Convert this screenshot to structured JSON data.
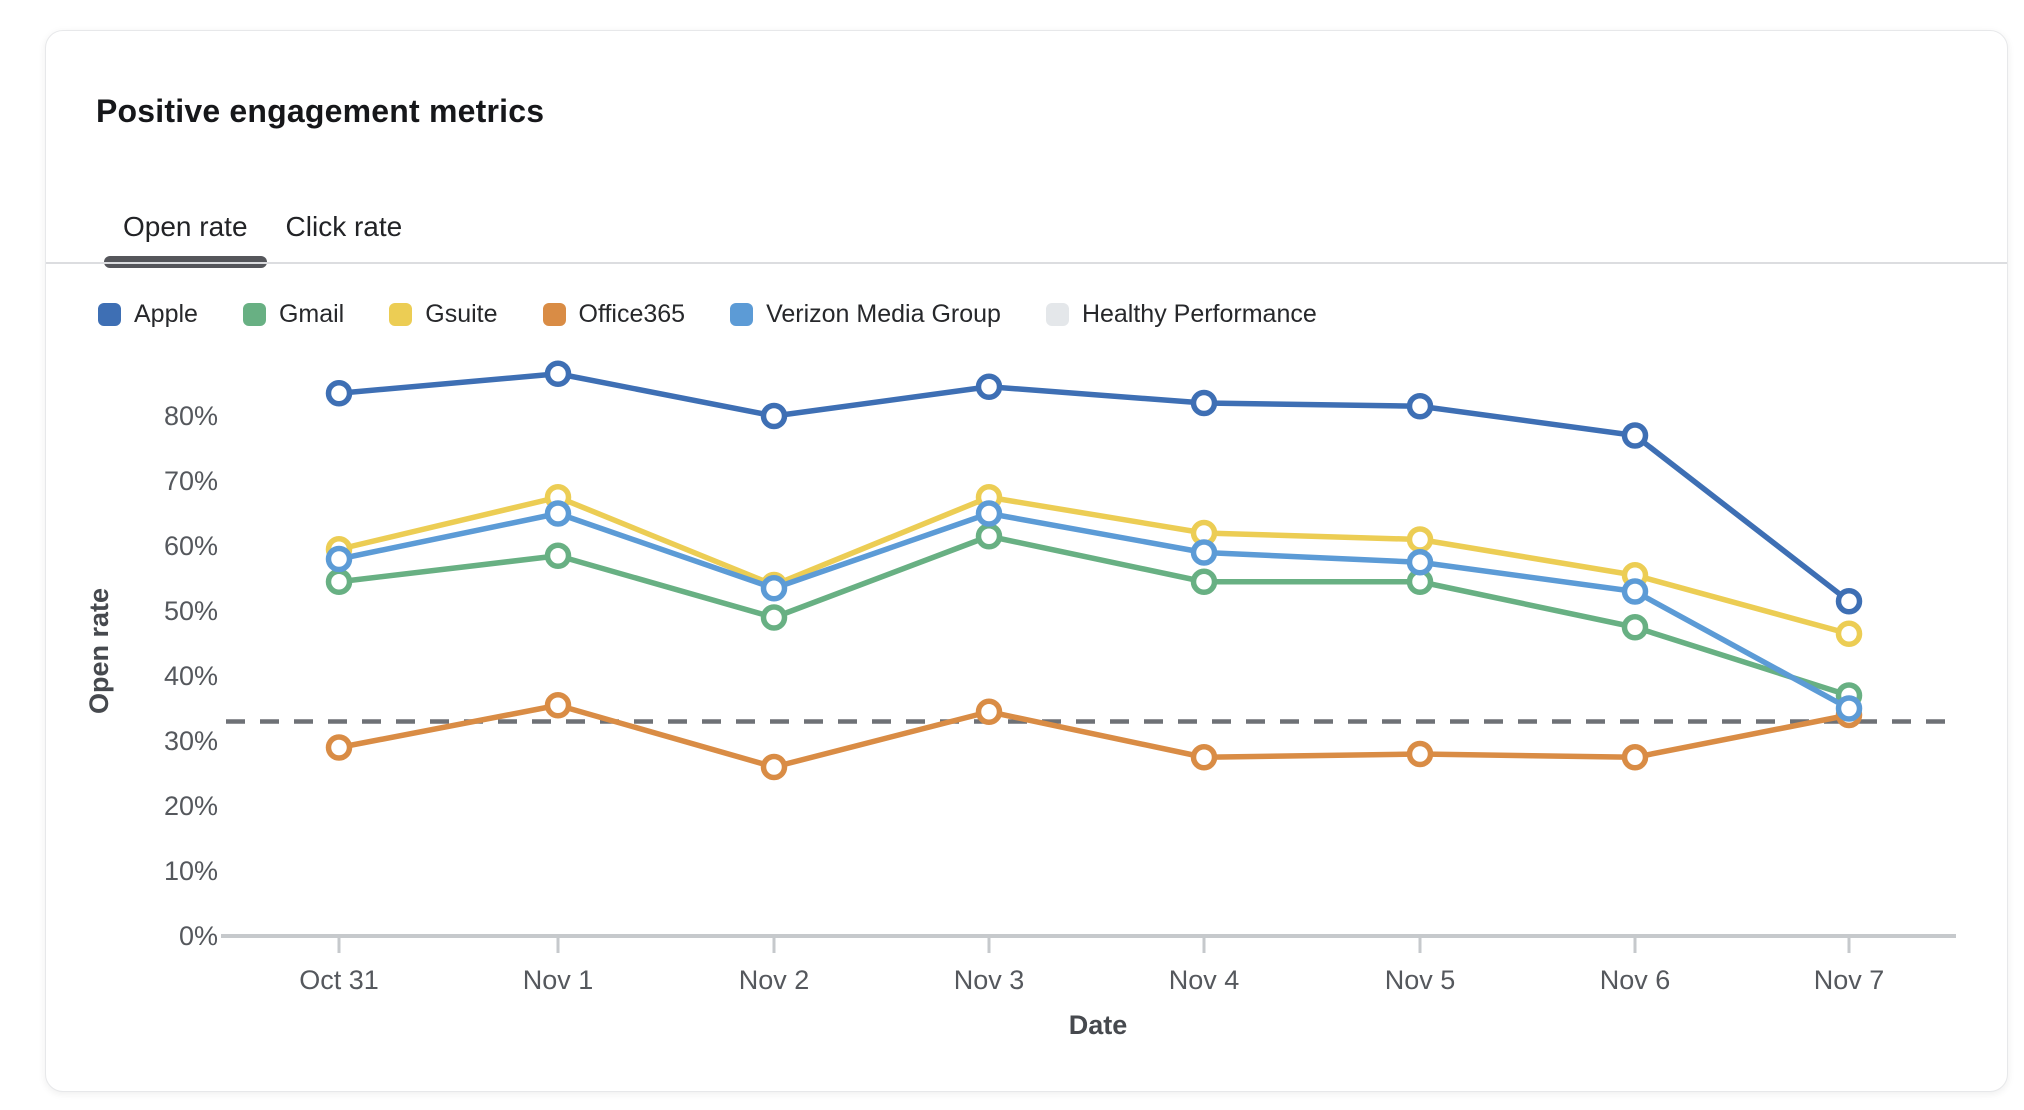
{
  "card": {
    "title": "Positive engagement metrics",
    "tabs": [
      {
        "label": "Open rate",
        "active": true
      },
      {
        "label": "Click rate",
        "active": false
      }
    ]
  },
  "legend": [
    {
      "label": "Apple",
      "color": "#3e6fb4"
    },
    {
      "label": "Gmail",
      "color": "#68b083"
    },
    {
      "label": "Gsuite",
      "color": "#eccd54"
    },
    {
      "label": "Office365",
      "color": "#d98c45"
    },
    {
      "label": "Verizon Media Group",
      "color": "#5c9bd6"
    },
    {
      "label": "Healthy Performance",
      "color": "#e4e7ea"
    }
  ],
  "chart_data": {
    "type": "line",
    "title": "Positive engagement metrics",
    "x": [
      "Oct 31",
      "Nov 1",
      "Nov 2",
      "Nov 3",
      "Nov 4",
      "Nov 5",
      "Nov 6",
      "Nov 7"
    ],
    "series": [
      {
        "name": "Apple",
        "color": "#3e6fb4",
        "values": [
          83.5,
          86.5,
          80.0,
          84.5,
          82.0,
          81.5,
          77.0,
          51.5
        ]
      },
      {
        "name": "Gmail",
        "color": "#68b083",
        "values": [
          54.5,
          58.5,
          49.0,
          61.5,
          54.5,
          54.5,
          47.5,
          37.0
        ]
      },
      {
        "name": "Gsuite",
        "color": "#eccd54",
        "values": [
          59.5,
          67.5,
          54.0,
          67.5,
          62.0,
          61.0,
          55.5,
          46.5
        ]
      },
      {
        "name": "Office365",
        "color": "#d98c45",
        "values": [
          29.0,
          35.5,
          26.0,
          34.5,
          27.5,
          28.0,
          27.5,
          34.0
        ]
      },
      {
        "name": "Verizon Media Group",
        "color": "#5c9bd6",
        "values": [
          58.0,
          65.0,
          53.5,
          65.0,
          59.0,
          57.5,
          53.0,
          35.0
        ]
      }
    ],
    "benchmark": {
      "name": "Healthy Performance",
      "value": 33,
      "style": "dashed",
      "line_color": "#6e7176",
      "swatch_color": "#e4e7ea"
    },
    "xlabel": "Date",
    "ylabel": "Open rate",
    "yticks": [
      0,
      10,
      20,
      30,
      40,
      50,
      60,
      70,
      80
    ],
    "ytick_suffix": "%",
    "ylim": [
      0,
      90
    ],
    "grid": false,
    "legend_position": "top"
  }
}
